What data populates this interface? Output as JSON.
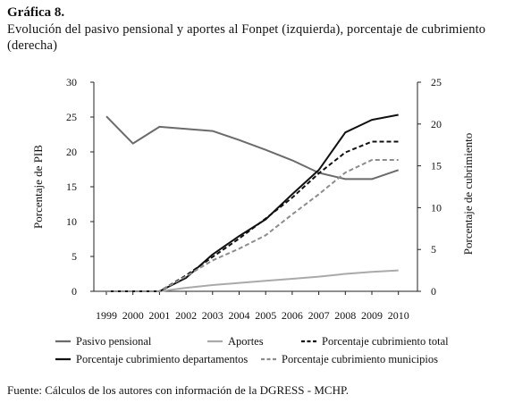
{
  "figure": {
    "label": "Gráfica 8.",
    "title": "Evolución del pasivo pensional y aportes al Fonpet (izquierda), porcentaje de cubrimiento (derecha)",
    "source": "Fuente: Cálculos de los autores con información de la DGRESS - MCHP."
  },
  "chart_data": {
    "type": "line",
    "x": [
      "1999",
      "2000",
      "2001",
      "2002",
      "2003",
      "2004",
      "2005",
      "2006",
      "2007",
      "2008",
      "2009",
      "2010"
    ],
    "y_left": {
      "label": "Porcentaje de PIB",
      "range": [
        0,
        30
      ],
      "ticks": [
        0,
        5,
        10,
        15,
        20,
        25,
        30
      ]
    },
    "y_right": {
      "label": "Porcentaje de cubrimiento",
      "range": [
        0,
        25
      ],
      "ticks": [
        0,
        5,
        10,
        15,
        20,
        25
      ]
    },
    "grid": false,
    "legend_position": "bottom",
    "series": [
      {
        "name": "Pasivo pensional",
        "axis": "left",
        "color": "#6b6b6b",
        "dash": "solid",
        "values": [
          25.1,
          21.2,
          23.6,
          23.3,
          23.0,
          21.7,
          20.3,
          18.8,
          17.0,
          16.1,
          16.1,
          17.4
        ]
      },
      {
        "name": "Aportes",
        "axis": "left",
        "color": "#aaaaaa",
        "dash": "solid",
        "values": [
          0,
          0,
          0,
          0.5,
          0.9,
          1.2,
          1.5,
          1.8,
          2.1,
          2.5,
          2.8,
          3.0
        ]
      },
      {
        "name": "Porcentaje cubrimiento total",
        "axis": "right",
        "color": "#111111",
        "dash": "dashed",
        "values": [
          0,
          0,
          0,
          1.9,
          4.1,
          6.3,
          8.7,
          11.2,
          14.1,
          16.6,
          17.9,
          17.9
        ]
      },
      {
        "name": "Porcentaje cubrimiento departamentos",
        "axis": "right",
        "color": "#111111",
        "dash": "solid",
        "values": [
          0,
          0,
          0,
          1.6,
          4.4,
          6.6,
          8.6,
          11.6,
          14.5,
          19.0,
          20.5,
          21.1
        ]
      },
      {
        "name": "Porcentaje cubrimiento municipios",
        "axis": "right",
        "color": "#8c8c8c",
        "dash": "dashed",
        "values": [
          0,
          0,
          0,
          1.8,
          3.7,
          5.1,
          6.7,
          9.2,
          11.6,
          14.2,
          15.7,
          15.7
        ]
      }
    ]
  }
}
